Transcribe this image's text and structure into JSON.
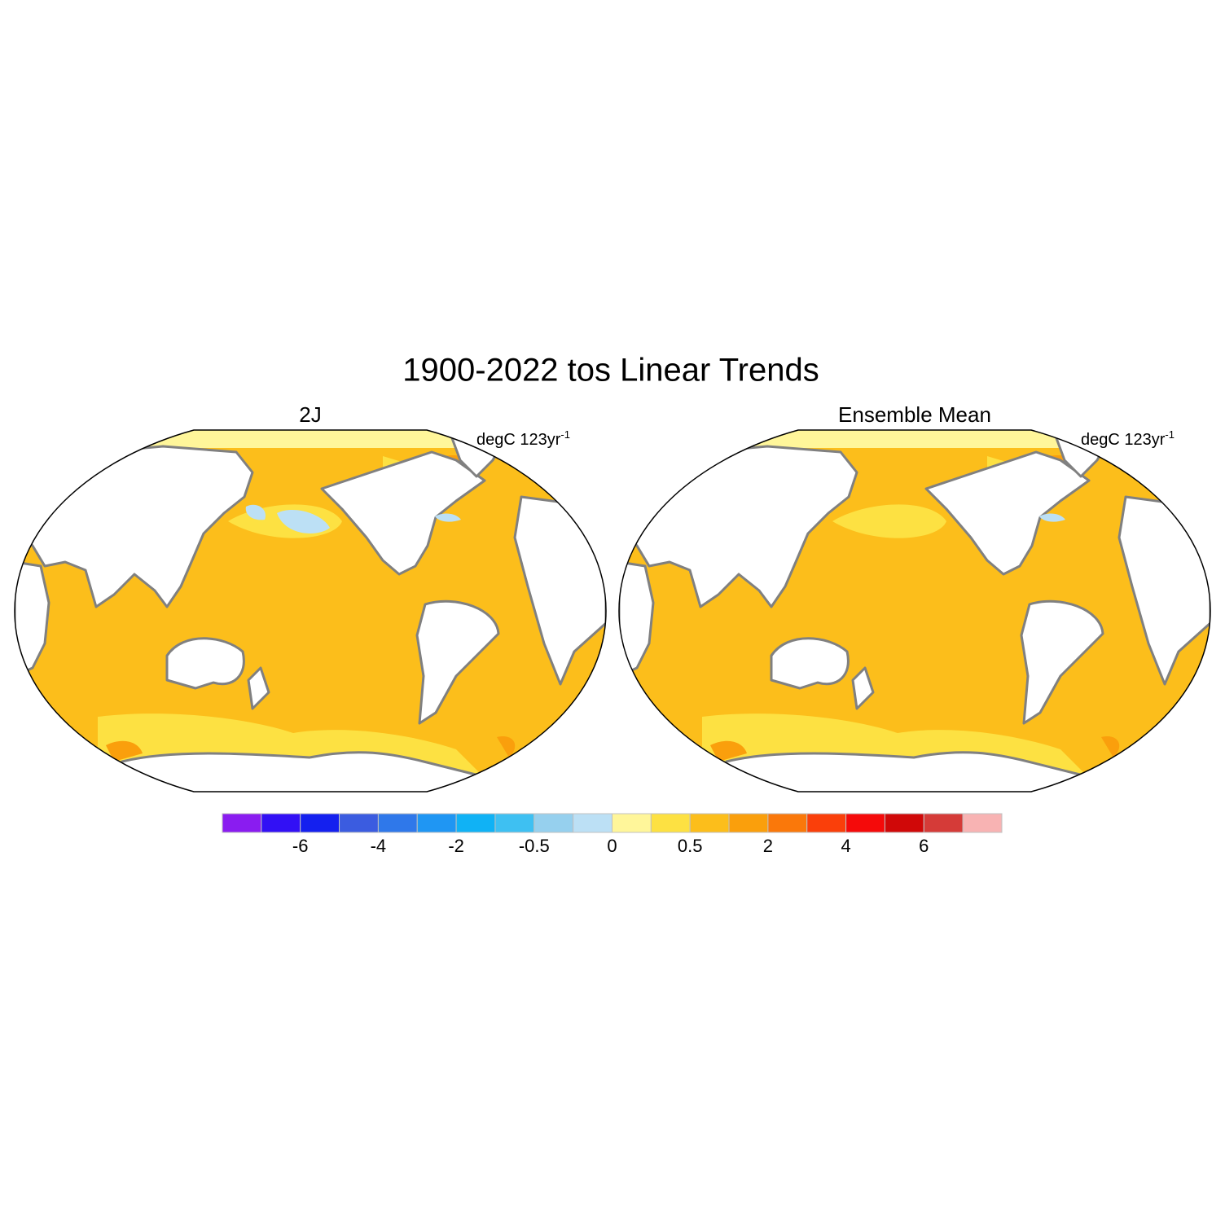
{
  "title": "1900-2022 tos Linear Trends",
  "panels": [
    {
      "title": "2J",
      "units": {
        "base": "degC 123yr",
        "exponent": "-1"
      }
    },
    {
      "title": "Ensemble Mean",
      "units": {
        "base": "degC 123yr",
        "exponent": "-1"
      }
    }
  ],
  "colorbar": {
    "colors": [
      "#8a1cf0",
      "#3210f5",
      "#1420ef",
      "#3b5ce0",
      "#2f78ea",
      "#1f96f3",
      "#10b2f5",
      "#3ec0f2",
      "#96d0ee",
      "#bce0f5",
      "#fff69a",
      "#fde142",
      "#fcbe1b",
      "#fa9f0c",
      "#fa780a",
      "#fa3f0a",
      "#f50a0a",
      "#d00808",
      "#d53b38",
      "#f8b3b3"
    ],
    "labels": [
      "-6",
      "-4",
      "-2",
      "-0.5",
      "0",
      "0.5",
      "2",
      "4",
      "6"
    ]
  }
}
